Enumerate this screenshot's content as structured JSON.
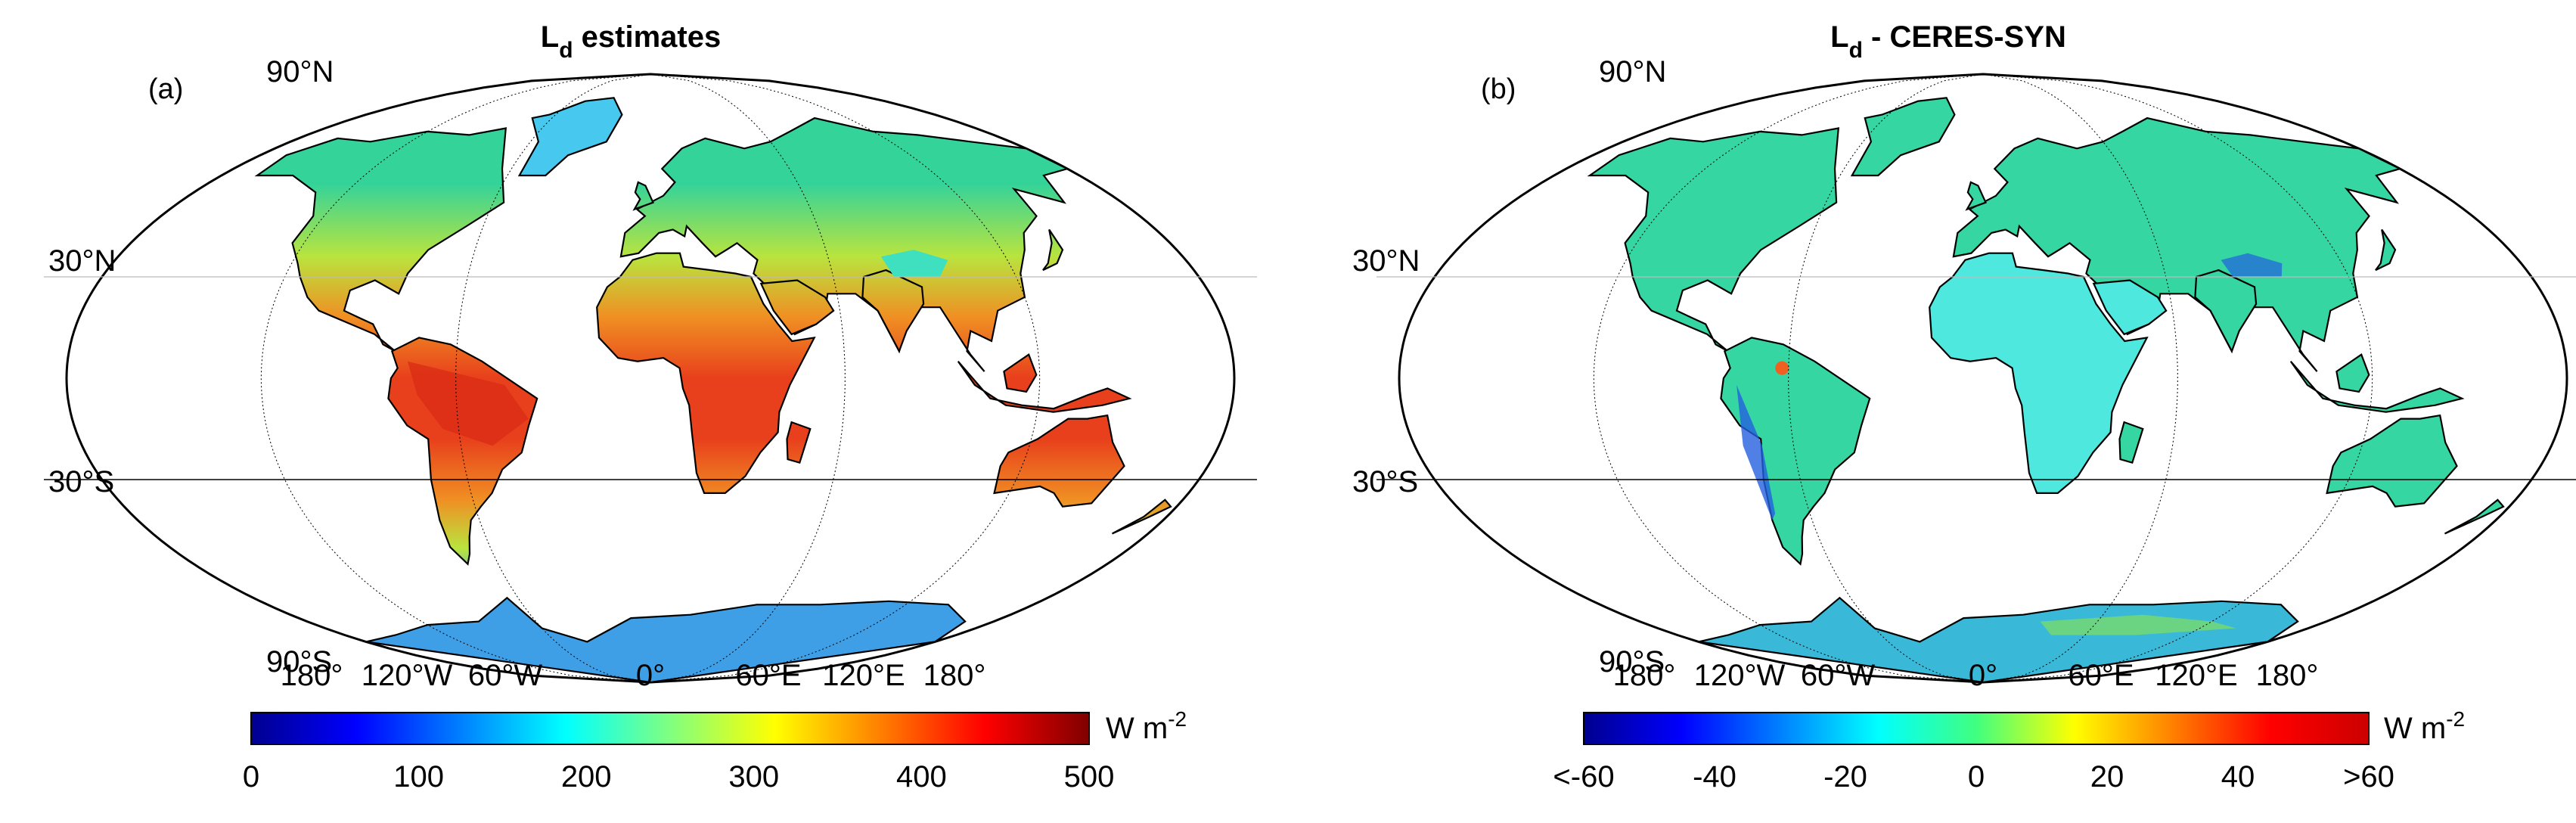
{
  "figure": {
    "panels": [
      {
        "id": "a",
        "panel_label": "(a)",
        "title_main": "L",
        "title_sub": "d",
        "title_rest": " estimates",
        "lat_labels": [
          "90°N",
          "30°N",
          "30°S",
          "90°S"
        ],
        "lon_labels": [
          "180°",
          "120°W",
          "60°W",
          "0°",
          "60°E",
          "120°E",
          "180°"
        ],
        "colorbar": {
          "unit_main": "W m",
          "unit_sup": "-2",
          "tick_labels": [
            "0",
            "100",
            "200",
            "300",
            "400",
            "500"
          ],
          "range": [
            0,
            500
          ],
          "colormap": "jet",
          "colors": [
            "#00008f",
            "#0000ff",
            "#0080ff",
            "#00ffff",
            "#80ff80",
            "#ffff00",
            "#ff8000",
            "#ff0000",
            "#800000"
          ]
        },
        "map_colors": {
          "tropics": "#e8401c",
          "subtropics": "#f08f23",
          "midlat": "#b9e43e",
          "highlat": "#34d39a",
          "tibet": "#3ee0c0",
          "antarctica": "#3f9fe6",
          "greenland": "#47c9ef"
        }
      },
      {
        "id": "b",
        "panel_label": "(b)",
        "title_main": "L",
        "title_sub": "d",
        "title_rest": " - CERES-SYN",
        "lat_labels": [
          "90°N",
          "30°N",
          "30°S",
          "90°S"
        ],
        "lon_labels": [
          "180°",
          "120°W",
          "60°W",
          "0°",
          "60°E",
          "120°E",
          "180°"
        ],
        "colorbar": {
          "unit_main": "W m",
          "unit_sup": "-2",
          "tick_labels": [
            "<-60",
            "-40",
            "-20",
            "0",
            "20",
            "40",
            ">60"
          ],
          "range": [
            -60,
            60
          ],
          "colormap": "jet",
          "colors": [
            "#00008f",
            "#0000ff",
            "#0080ff",
            "#00ffff",
            "#40ff80",
            "#ffff00",
            "#ff8000",
            "#ff0000",
            "#cc0000"
          ]
        },
        "map_colors": {
          "land": "#35d6a2",
          "landAlt": "#3fdcb8",
          "desert": "#4fe8df",
          "antarctica": "#3ab8d8",
          "negative": "#2460e0",
          "positive": "#f06020"
        }
      }
    ]
  }
}
